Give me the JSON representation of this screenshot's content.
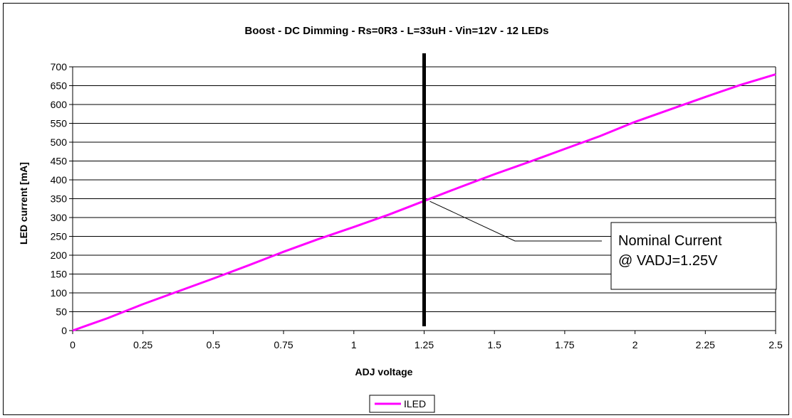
{
  "chart_data": {
    "type": "line",
    "title": "Boost - DC Dimming - Rs=0R3 - L=33uH - Vin=12V - 12 LEDs",
    "xlabel": "ADJ voltage",
    "ylabel": "LED current [mA]",
    "xlim": [
      0,
      2.5
    ],
    "ylim": [
      0,
      700
    ],
    "xticks": [
      "0",
      "0.25",
      "0.5",
      "0.75",
      "1",
      "1.25",
      "1.5",
      "1.75",
      "2",
      "2.25",
      "2.5"
    ],
    "yticks": [
      "0",
      "50",
      "100",
      "150",
      "200",
      "250",
      "300",
      "350",
      "400",
      "450",
      "500",
      "550",
      "600",
      "650",
      "700"
    ],
    "grid": "horizontal",
    "legend_position": "bottom",
    "series": [
      {
        "name": "ILED",
        "color": "#ff00ff",
        "x": [
          0,
          0.125,
          0.25,
          0.375,
          0.5,
          0.625,
          0.75,
          0.875,
          1.0,
          1.125,
          1.25,
          1.375,
          1.5,
          1.625,
          1.75,
          1.875,
          2.0,
          2.125,
          2.25,
          2.375,
          2.5
        ],
        "y": [
          0,
          33,
          70,
          104,
          138,
          173,
          209,
          243,
          275,
          308,
          344,
          380,
          415,
          448,
          482,
          516,
          554,
          587,
          620,
          652,
          680
        ]
      }
    ],
    "marker_line": {
      "x": 1.25,
      "color": "#000000"
    },
    "annotation": {
      "lines": [
        "Nominal Current",
        "@ VADJ=1.25V"
      ],
      "point_x": 1.25,
      "point_y": 345
    }
  }
}
